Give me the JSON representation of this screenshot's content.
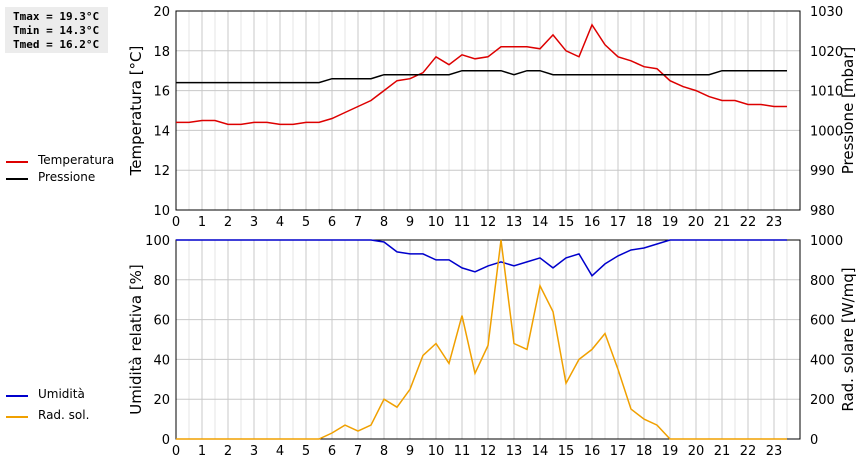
{
  "stats": {
    "tmax": "Tmax = 19.3°C",
    "tmin": "Tmin = 14.3°C",
    "tmed": "Tmed = 16.2°C"
  },
  "chart_data": [
    {
      "type": "line",
      "ylabel": "Temperatura [°C]",
      "y2label": "Pressione [mbar]",
      "xlim": [
        0,
        24
      ],
      "xticks": [
        0,
        1,
        2,
        3,
        4,
        5,
        6,
        7,
        8,
        9,
        10,
        11,
        12,
        13,
        14,
        15,
        16,
        17,
        18,
        19,
        20,
        21,
        22,
        23
      ],
      "ylim": [
        10,
        20
      ],
      "yticks": [
        10,
        12,
        14,
        16,
        18,
        20
      ],
      "y2lim": [
        980,
        1030
      ],
      "y2ticks": [
        980,
        990,
        1000,
        1010,
        1020,
        1030
      ],
      "grid": true,
      "legend_position": "left",
      "series": [
        {
          "name": "Temperatura",
          "axis": "left",
          "color": "#dd0000",
          "x": [
            0,
            0.5,
            1,
            1.5,
            2,
            2.5,
            3,
            3.5,
            4,
            4.5,
            5,
            5.5,
            6,
            6.5,
            7,
            7.5,
            8,
            8.5,
            9,
            9.5,
            10,
            10.5,
            11,
            11.5,
            12,
            12.5,
            13,
            13.5,
            14,
            14.5,
            15,
            15.5,
            16,
            16.5,
            17,
            17.5,
            18,
            18.5,
            19,
            19.5,
            20,
            20.5,
            21,
            21.5,
            22,
            22.5,
            23,
            23.5
          ],
          "values": [
            14.4,
            14.4,
            14.5,
            14.5,
            14.3,
            14.3,
            14.4,
            14.4,
            14.3,
            14.3,
            14.4,
            14.4,
            14.6,
            14.9,
            15.2,
            15.5,
            16.0,
            16.5,
            16.6,
            16.9,
            17.7,
            17.3,
            17.8,
            17.6,
            17.7,
            18.2,
            18.2,
            18.2,
            18.1,
            18.8,
            18.0,
            17.7,
            19.3,
            18.3,
            17.7,
            17.5,
            17.2,
            17.1,
            16.5,
            16.2,
            16.0,
            15.7,
            15.5,
            15.5,
            15.3,
            15.3,
            15.2,
            15.2
          ]
        },
        {
          "name": "Pressione",
          "axis": "right",
          "color": "#000000",
          "x": [
            0,
            5.5,
            6,
            7.5,
            8,
            10.5,
            11,
            12.5,
            13,
            13.5,
            14,
            14.5,
            15,
            20.5,
            21,
            23.5
          ],
          "values": [
            1012,
            1012,
            1013,
            1013,
            1014,
            1014,
            1015,
            1015,
            1014,
            1015,
            1015,
            1014,
            1014,
            1014,
            1015,
            1015
          ]
        }
      ]
    },
    {
      "type": "line",
      "ylabel": "Umidità relativa [%]",
      "y2label": "Rad. solare [W/mq]",
      "xlim": [
        0,
        24
      ],
      "xticks": [
        0,
        1,
        2,
        3,
        4,
        5,
        6,
        7,
        8,
        9,
        10,
        11,
        12,
        13,
        14,
        15,
        16,
        17,
        18,
        19,
        20,
        21,
        22,
        23
      ],
      "ylim": [
        0,
        100
      ],
      "yticks": [
        0,
        20,
        40,
        60,
        80,
        100
      ],
      "y2lim": [
        0,
        1000
      ],
      "y2ticks": [
        0,
        200,
        400,
        600,
        800,
        1000
      ],
      "grid": true,
      "legend_position": "left",
      "series": [
        {
          "name": "Umidità",
          "axis": "left",
          "color": "#0000cc",
          "x": [
            0,
            7.5,
            8,
            8.5,
            9,
            9.5,
            10,
            10.5,
            11,
            11.5,
            12,
            12.5,
            13,
            13.5,
            14,
            14.5,
            15,
            15.5,
            16,
            16.5,
            17,
            17.5,
            18,
            18.5,
            19,
            19.5,
            23.5
          ],
          "values": [
            100,
            100,
            99,
            94,
            93,
            93,
            90,
            90,
            86,
            84,
            87,
            89,
            87,
            89,
            91,
            86,
            91,
            93,
            82,
            88,
            92,
            95,
            96,
            98,
            100,
            100,
            100
          ]
        },
        {
          "name": "Rad. sol.",
          "axis": "right",
          "color": "#f0a000",
          "x": [
            0,
            5.5,
            6,
            6.5,
            7,
            7.5,
            8,
            8.5,
            9,
            9.5,
            10,
            10.5,
            11,
            11.5,
            12,
            12.5,
            13,
            13.5,
            14,
            14.5,
            15,
            15.5,
            16,
            16.5,
            17,
            17.5,
            18,
            18.5,
            19,
            19.5,
            23.5
          ],
          "values": [
            0,
            0,
            30,
            70,
            40,
            70,
            200,
            160,
            250,
            420,
            480,
            380,
            620,
            330,
            470,
            1000,
            480,
            450,
            770,
            640,
            280,
            400,
            450,
            530,
            350,
            150,
            100,
            70,
            0,
            0,
            0
          ]
        }
      ]
    }
  ]
}
